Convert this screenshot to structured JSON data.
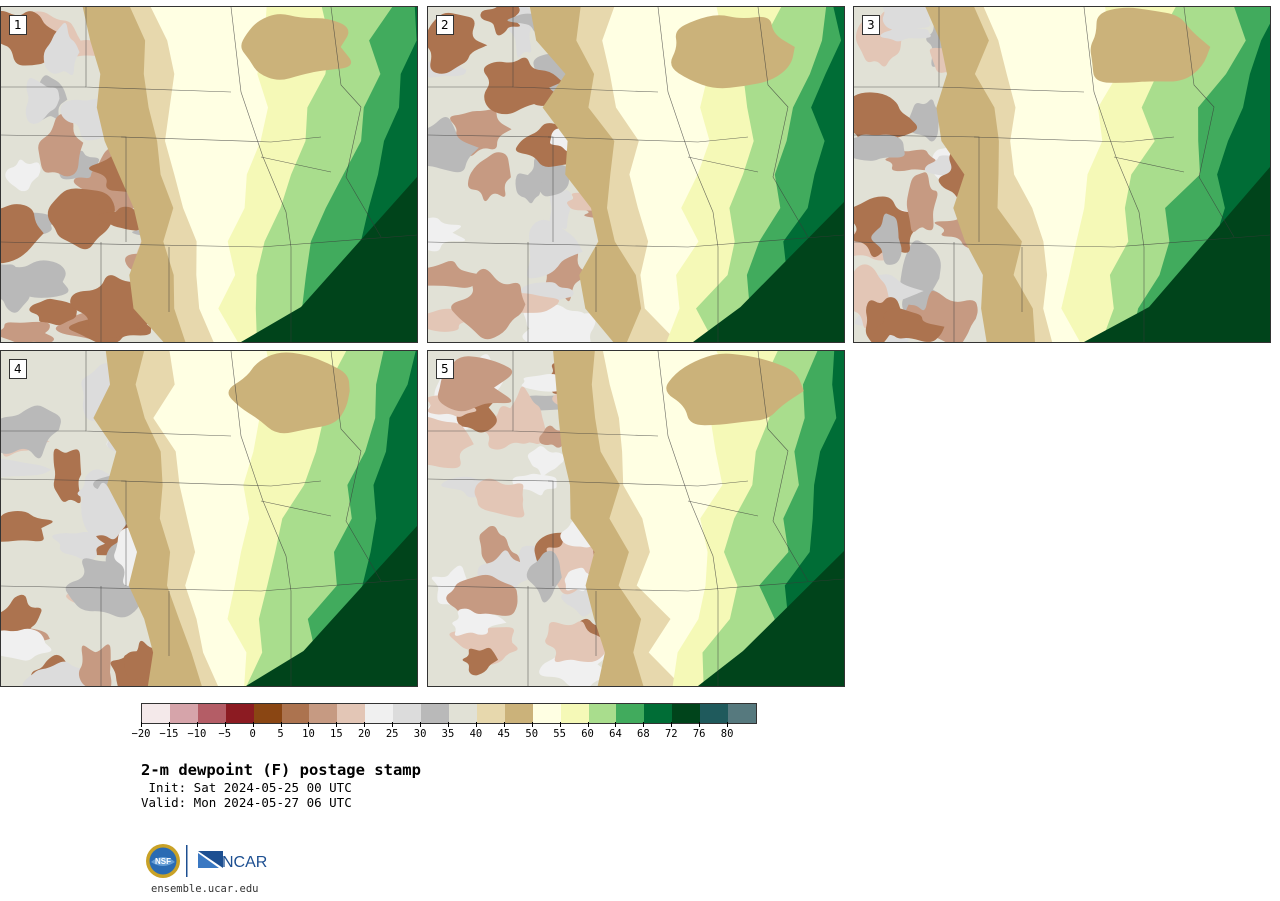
{
  "panels": [
    {
      "label": "1"
    },
    {
      "label": "2"
    },
    {
      "label": "3"
    },
    {
      "label": "4"
    },
    {
      "label": "5"
    }
  ],
  "colorbar": {
    "colors": [
      "#f4e9ea",
      "#d6a4aa",
      "#b45d66",
      "#8c1b22",
      "#8a4613",
      "#ac734f",
      "#c69a82",
      "#e3c6b6",
      "#f0f0f0",
      "#dcdcdc",
      "#b9b9b9",
      "#e1e1d6",
      "#e7d8ad",
      "#cbb27a",
      "#ffffe3",
      "#f5f9b7",
      "#a9dd8d",
      "#41ab5d",
      "#006d36",
      "#00441b",
      "#1f5a5c",
      "#56797e"
    ],
    "tick_labels": [
      "−20",
      "−15",
      "−10",
      "−5",
      "0",
      "5",
      "10",
      "15",
      "20",
      "25",
      "30",
      "35",
      "40",
      "45",
      "50",
      "55",
      "60",
      "64",
      "68",
      "72",
      "76",
      "80"
    ]
  },
  "title": "2-m dewpoint (F) postage stamp",
  "init": " Init: Sat 2024-05-25 00 UTC",
  "valid": "Valid: Mon 2024-05-27 06 UTC",
  "logos": {
    "nsf": "NSF",
    "ncar": "NCAR"
  },
  "site": "ensemble.ucar.edu"
}
